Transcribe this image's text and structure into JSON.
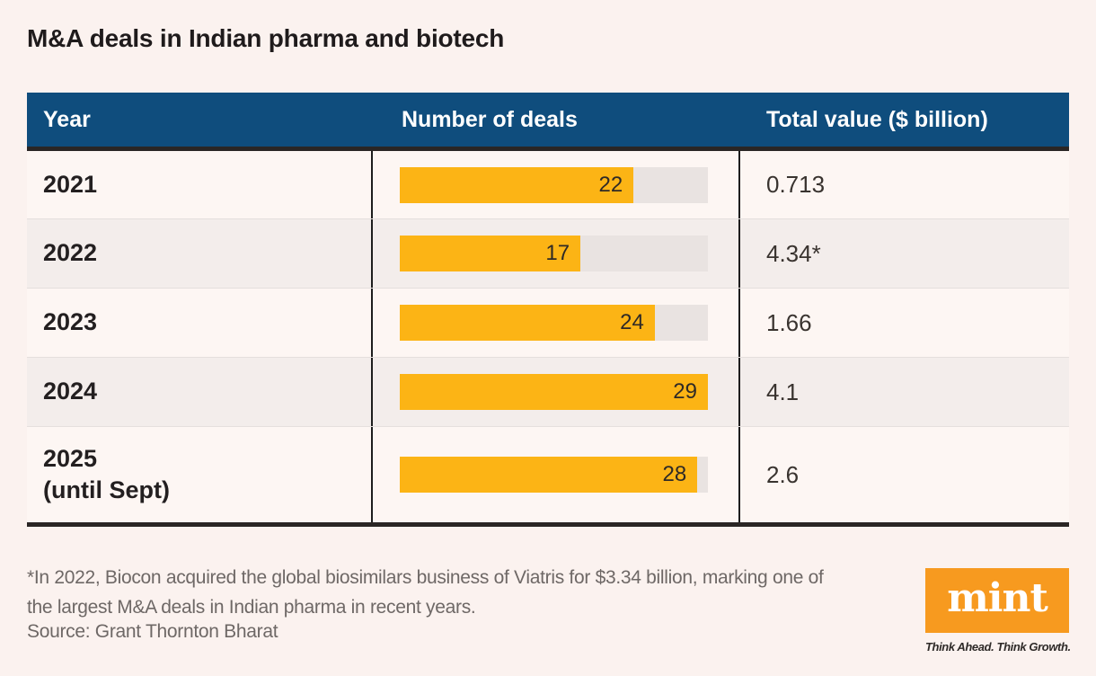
{
  "page": {
    "title": "M&A deals in Indian pharma and biotech"
  },
  "table": {
    "headers": [
      "Year",
      "Number of deals",
      "Total value ($ billion)"
    ],
    "rows": [
      {
        "year": "2021",
        "note": "",
        "value": "0.713"
      },
      {
        "year": "2022",
        "note": "",
        "value": "4.34*"
      },
      {
        "year": "2023",
        "note": "",
        "value": "1.66"
      },
      {
        "year": "2024",
        "note": "",
        "value": "4.1"
      },
      {
        "year": "2025",
        "note": "(until Sept)",
        "value": "2.6"
      }
    ]
  },
  "chart_data": {
    "type": "bar",
    "orientation": "horizontal",
    "title": "M&A deals in Indian pharma and biotech",
    "categories": [
      "2021",
      "2022",
      "2023",
      "2024",
      "2025 (until Sept)"
    ],
    "series": [
      {
        "name": "Number of deals",
        "values": [
          22,
          17,
          24,
          29,
          28
        ]
      },
      {
        "name": "Total value ($ billion)",
        "values": [
          0.713,
          4.34,
          1.66,
          4.1,
          2.6
        ]
      }
    ],
    "value_labels": [
      "0.713",
      "4.34*",
      "1.66",
      "4.1",
      "2.6"
    ],
    "xlim": [
      0,
      29
    ],
    "grid": false,
    "legend_position": "none"
  },
  "footnote": {
    "lines": [
      "*In 2022, Biocon acquired the global biosimilars business of Viatris for $3.34 billion, marking one of",
      "the largest M&A deals in Indian pharma in recent years."
    ]
  },
  "source": "Source: Grant Thornton Bharat",
  "branding": {
    "logo_text": "mint",
    "tagline": "Think Ahead. Think Growth."
  },
  "colors": {
    "page_bg": "#fbf2ef",
    "header_bg": "#0f4d7d",
    "header_text": "#ffffff",
    "bar_fill": "#fcb415",
    "bar_track": "#e9e3e1",
    "row_alt_bg": "#f3edeb",
    "rule_dark": "#2a2625",
    "divider_dark": "#1d1d1d",
    "logo_bg": "#f79a1f",
    "footnote_text": "#6e6866"
  }
}
